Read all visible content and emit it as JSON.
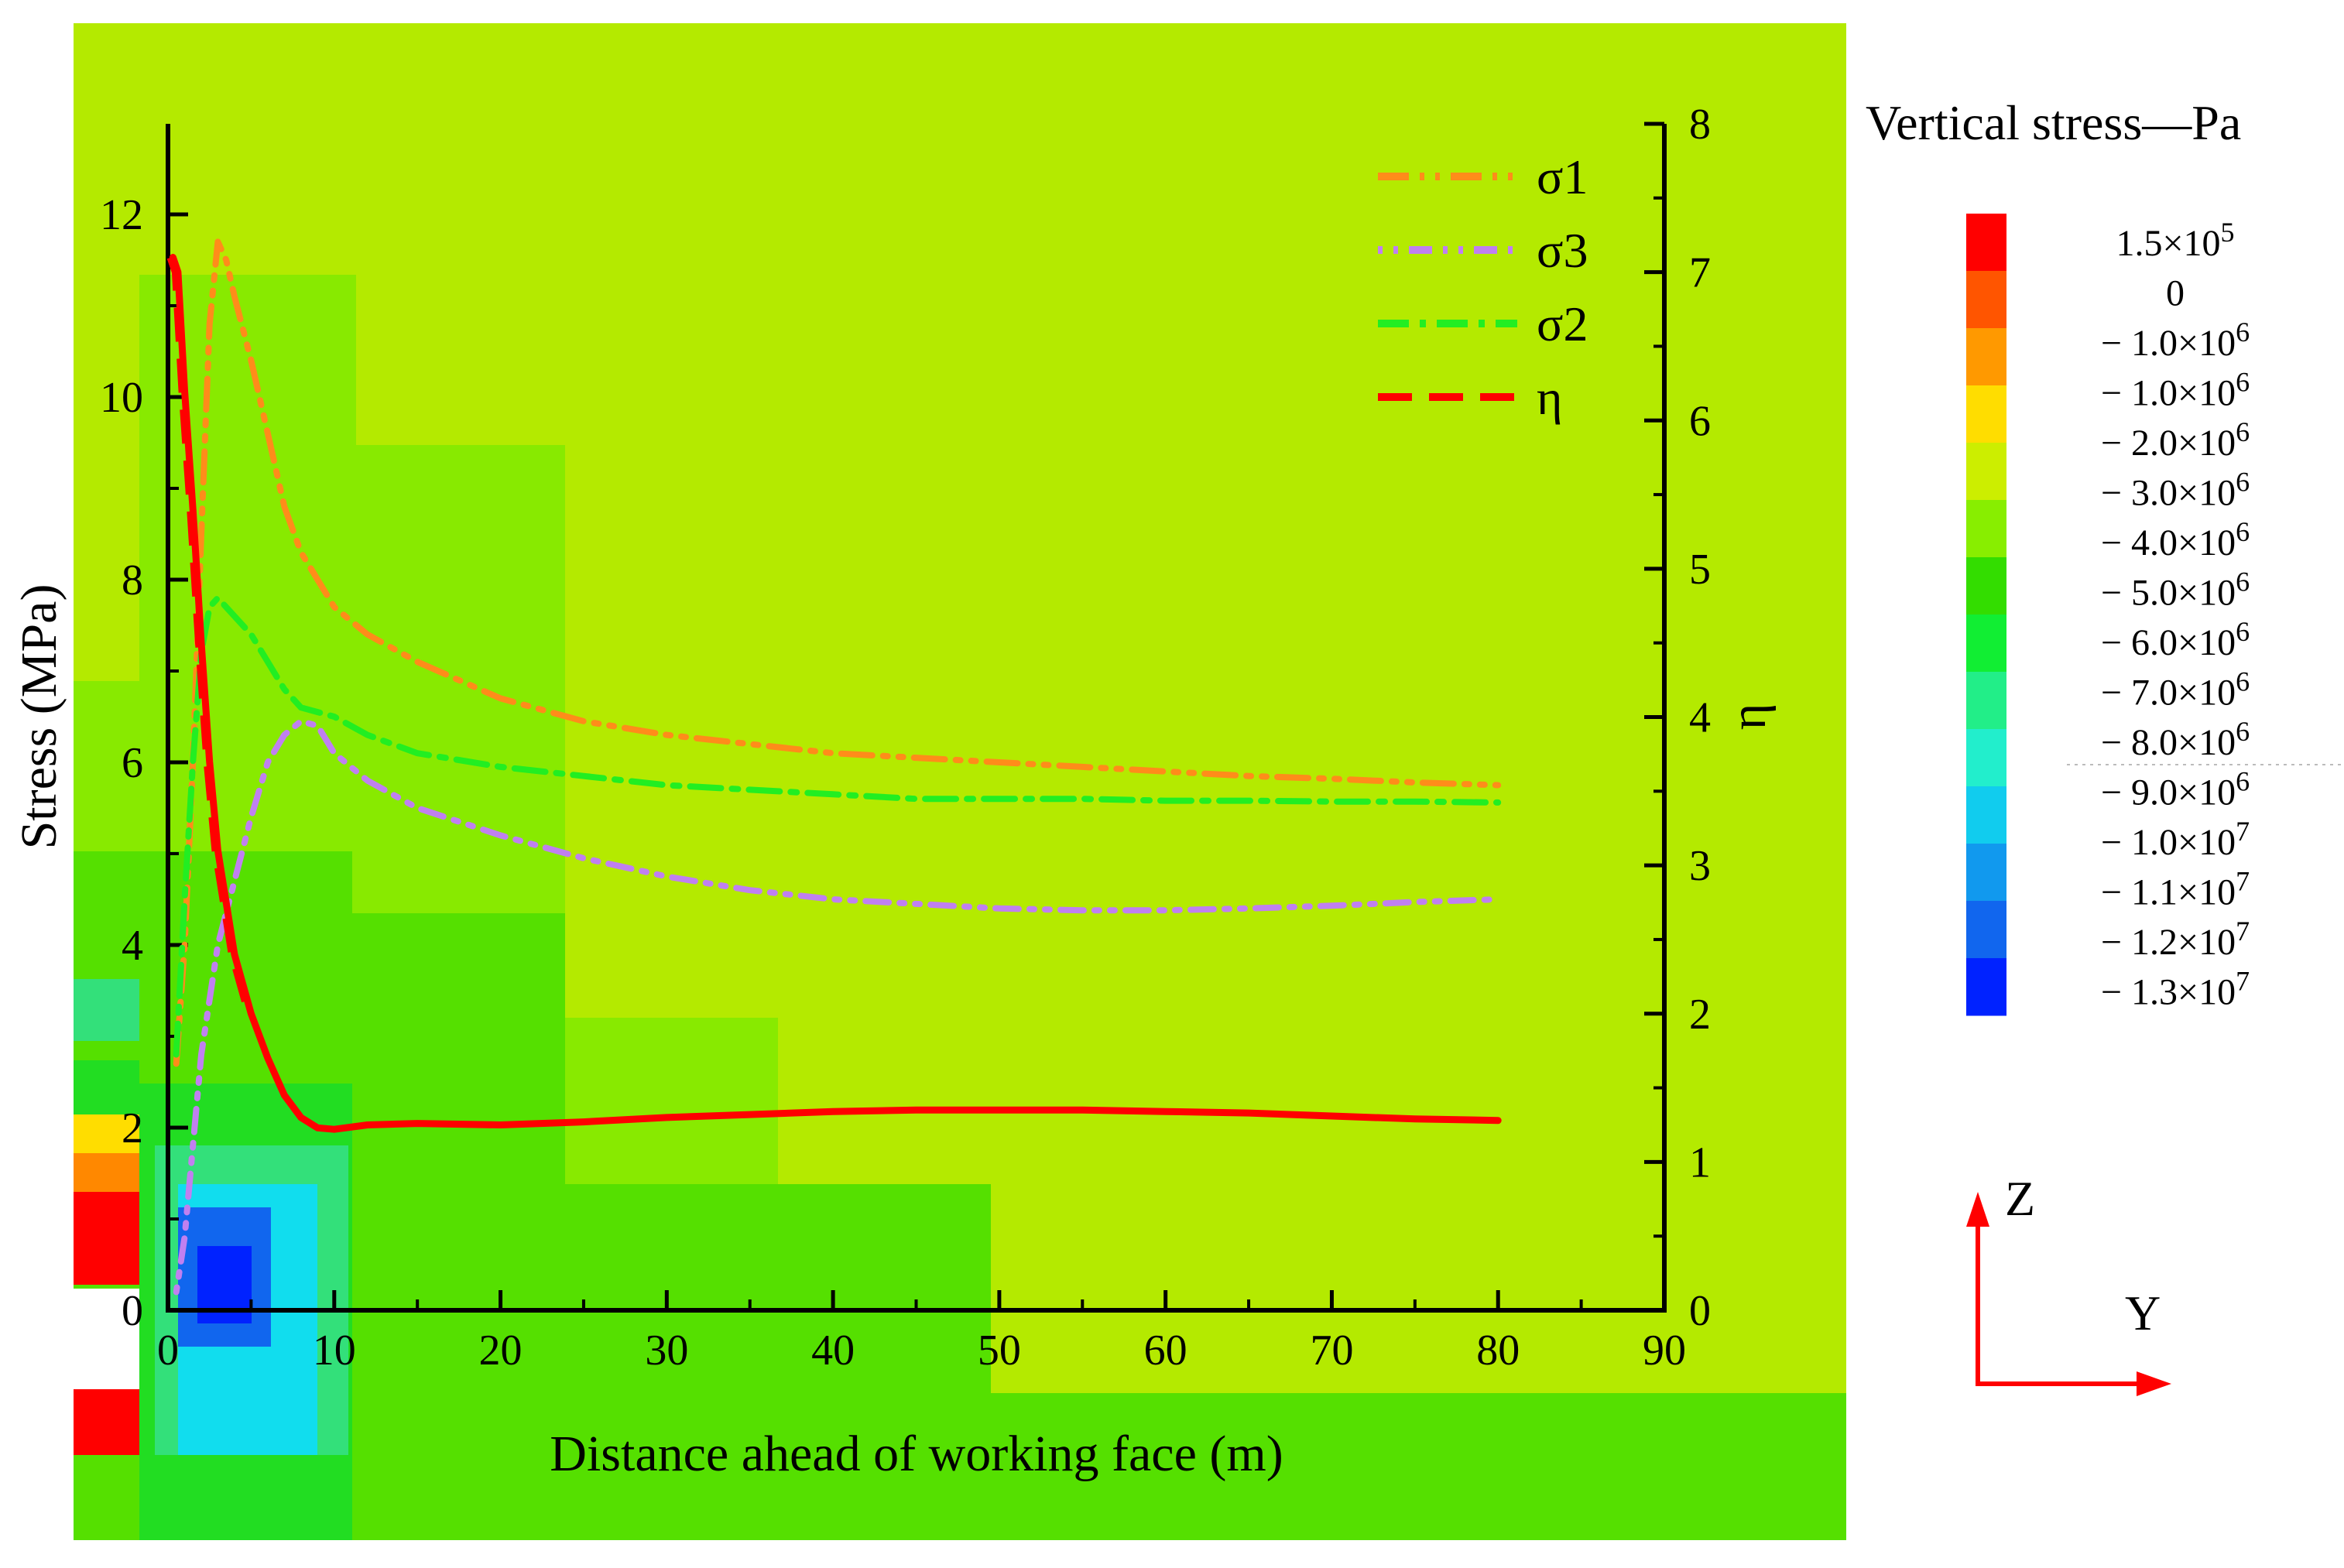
{
  "chart_data": {
    "type": "line",
    "xlabel": "Distance ahead of working face (m)",
    "ylabel": "Stress (MPa)",
    "y2label": "η",
    "xlim": [
      0,
      90
    ],
    "ylim": [
      0,
      13
    ],
    "y2lim": [
      0,
      8
    ],
    "xticks": [
      0,
      10,
      20,
      30,
      40,
      50,
      60,
      70,
      80,
      90
    ],
    "yticks": [
      0,
      2,
      4,
      6,
      8,
      10,
      12
    ],
    "y2ticks": [
      0,
      1,
      2,
      3,
      4,
      5,
      6,
      7,
      8
    ],
    "legend_position": "top-right",
    "series": [
      {
        "name": "σ1",
        "axis": "left",
        "color": "#ff8c1a",
        "dash": "dash-dot-dot",
        "points": [
          [
            0.5,
            2.7
          ],
          [
            1,
            4
          ],
          [
            1.5,
            6
          ],
          [
            2,
            8.5
          ],
          [
            2.5,
            10.8
          ],
          [
            3,
            11.7
          ],
          [
            3.5,
            11.5
          ],
          [
            4,
            11.1
          ],
          [
            5,
            10.4
          ],
          [
            6,
            9.6
          ],
          [
            7,
            8.8
          ],
          [
            8,
            8.3
          ],
          [
            9,
            8.0
          ],
          [
            10,
            7.7
          ],
          [
            12,
            7.4
          ],
          [
            15,
            7.1
          ],
          [
            20,
            6.7
          ],
          [
            25,
            6.45
          ],
          [
            30,
            6.3
          ],
          [
            35,
            6.2
          ],
          [
            40,
            6.1
          ],
          [
            45,
            6.05
          ],
          [
            50,
            6.0
          ],
          [
            55,
            5.95
          ],
          [
            60,
            5.9
          ],
          [
            65,
            5.85
          ],
          [
            70,
            5.82
          ],
          [
            75,
            5.78
          ],
          [
            80,
            5.75
          ]
        ]
      },
      {
        "name": "σ3",
        "axis": "left",
        "color": "#c080f0",
        "dash": "dot-dot-dash",
        "points": [
          [
            0.5,
            0.2
          ],
          [
            1,
            0.8
          ],
          [
            1.5,
            1.8
          ],
          [
            2,
            2.8
          ],
          [
            3,
            4.0
          ],
          [
            4,
            4.7
          ],
          [
            5,
            5.4
          ],
          [
            6,
            6.0
          ],
          [
            7,
            6.3
          ],
          [
            8,
            6.45
          ],
          [
            9,
            6.4
          ],
          [
            10,
            6.1
          ],
          [
            12,
            5.8
          ],
          [
            15,
            5.5
          ],
          [
            20,
            5.2
          ],
          [
            25,
            4.95
          ],
          [
            30,
            4.75
          ],
          [
            35,
            4.6
          ],
          [
            40,
            4.5
          ],
          [
            45,
            4.45
          ],
          [
            50,
            4.4
          ],
          [
            55,
            4.38
          ],
          [
            60,
            4.38
          ],
          [
            65,
            4.4
          ],
          [
            70,
            4.43
          ],
          [
            75,
            4.47
          ],
          [
            80,
            4.5
          ]
        ]
      },
      {
        "name": "σ2",
        "axis": "left",
        "color": "#22ee22",
        "dash": "dash-dot",
        "points": [
          [
            0.5,
            2.8
          ],
          [
            1,
            4.5
          ],
          [
            1.5,
            6.0
          ],
          [
            2,
            7.2
          ],
          [
            2.5,
            7.7
          ],
          [
            3,
            7.8
          ],
          [
            4,
            7.6
          ],
          [
            5,
            7.4
          ],
          [
            6,
            7.1
          ],
          [
            7,
            6.8
          ],
          [
            8,
            6.6
          ],
          [
            10,
            6.5
          ],
          [
            12,
            6.3
          ],
          [
            15,
            6.1
          ],
          [
            20,
            5.95
          ],
          [
            25,
            5.85
          ],
          [
            30,
            5.75
          ],
          [
            35,
            5.7
          ],
          [
            40,
            5.65
          ],
          [
            45,
            5.6
          ],
          [
            50,
            5.6
          ],
          [
            55,
            5.6
          ],
          [
            60,
            5.58
          ],
          [
            65,
            5.58
          ],
          [
            70,
            5.57
          ],
          [
            75,
            5.57
          ],
          [
            80,
            5.56
          ]
        ]
      },
      {
        "name": "η",
        "axis": "right",
        "color": "#ff0000",
        "dash": "dash",
        "points": [
          [
            0.3,
            7.1
          ],
          [
            0.6,
            7.0
          ],
          [
            1,
            6.2
          ],
          [
            1.5,
            5.4
          ],
          [
            2,
            4.5
          ],
          [
            2.5,
            3.7
          ],
          [
            3,
            3.1
          ],
          [
            4,
            2.4
          ],
          [
            5,
            2.0
          ],
          [
            6,
            1.7
          ],
          [
            7,
            1.45
          ],
          [
            8,
            1.3
          ],
          [
            9,
            1.23
          ],
          [
            10,
            1.22
          ],
          [
            12,
            1.25
          ],
          [
            15,
            1.26
          ],
          [
            20,
            1.25
          ],
          [
            25,
            1.27
          ],
          [
            30,
            1.3
          ],
          [
            35,
            1.32
          ],
          [
            40,
            1.34
          ],
          [
            45,
            1.35
          ],
          [
            50,
            1.35
          ],
          [
            55,
            1.35
          ],
          [
            60,
            1.34
          ],
          [
            65,
            1.33
          ],
          [
            70,
            1.31
          ],
          [
            75,
            1.29
          ],
          [
            80,
            1.28
          ]
        ]
      }
    ]
  },
  "colorbar": {
    "title": "Vertical stress—Pa",
    "colors": [
      "#ff0000",
      "#ff5500",
      "#ff9900",
      "#ffdd00",
      "#ccee00",
      "#88ee00",
      "#33dd00",
      "#11ee33",
      "#22ee88",
      "#22eecc",
      "#11ccee",
      "#1199ee",
      "#1166ee",
      "#0022ff"
    ],
    "labels": [
      {
        "base": "1.5×10",
        "exp": "5"
      },
      {
        "base": "0",
        "exp": ""
      },
      {
        "base": "− 1.0×10",
        "exp": "6"
      },
      {
        "base": "− 1.0×10",
        "exp": "6"
      },
      {
        "base": "− 2.0×10",
        "exp": "6"
      },
      {
        "base": "− 3.0×10",
        "exp": "6"
      },
      {
        "base": "− 4.0×10",
        "exp": "6"
      },
      {
        "base": "− 5.0×10",
        "exp": "6"
      },
      {
        "base": "− 6.0×10",
        "exp": "6"
      },
      {
        "base": "− 7.0×10",
        "exp": "6"
      },
      {
        "base": "− 8.0×10",
        "exp": "6"
      },
      {
        "base": "− 9.0×10",
        "exp": "6"
      },
      {
        "base": "− 1.0×10",
        "exp": "7"
      },
      {
        "base": "− 1.1×10",
        "exp": "7"
      },
      {
        "base": "− 1.2×10",
        "exp": "7"
      },
      {
        "base": "− 1.3×10",
        "exp": "7"
      }
    ]
  },
  "coordinate_system": {
    "vertical_label": "Z",
    "horizontal_label": "Y",
    "color": "#ff0000"
  },
  "contour_colors": {
    "background": "#b4ea00",
    "light_green": "#88ea00",
    "mid_green": "#55e000",
    "green": "#22dd22",
    "teal": "#33e07a",
    "cyan": "#11ddee",
    "blue": "#1166ee",
    "dark_blue": "#0022ff",
    "yellow": "#ffdd00",
    "orange": "#ff8800",
    "red": "#ff0000"
  }
}
